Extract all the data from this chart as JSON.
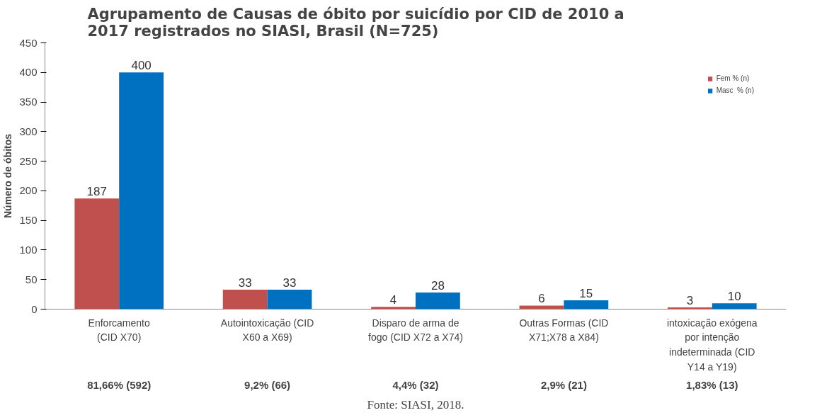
{
  "chart_data": {
    "type": "bar",
    "title": "Agrupamento de Causas de óbito por suicídio por CID de 2010 a\n2017 registrados no SIASI, Brasil (N=725)",
    "ylabel": "Número de óbitos",
    "categories": [
      "Enforcamento\n(CID X70)",
      "Autointoxicação (CID\nX60 a X69)",
      "Disparo de arma de\nfogo (CID X72 a X74)",
      "Outras Formas (CID\nX71;X78 a X84)",
      "intoxicação exógena\npor intenção\nindeterminada (CID\nY14 a Y19)"
    ],
    "series": [
      {
        "name": "Fem % (n)",
        "color": "#c0504d",
        "values": [
          187,
          33,
          4,
          6,
          3
        ]
      },
      {
        "name": "Masc  % (n)",
        "color": "#0070c0",
        "values": [
          400,
          33,
          28,
          15,
          10
        ]
      }
    ],
    "ylim": [
      0,
      450
    ],
    "yticks": [
      0,
      50,
      100,
      150,
      200,
      250,
      300,
      350,
      400,
      450
    ],
    "grid": false,
    "legend": "right",
    "data_labels": true,
    "annotations": [
      "81,66% (592)",
      "9,2% (66)",
      "4,4% (32)",
      "2,9% (21)",
      "1,83% (13)",
      "Fonte: SIASI, 2018."
    ]
  }
}
